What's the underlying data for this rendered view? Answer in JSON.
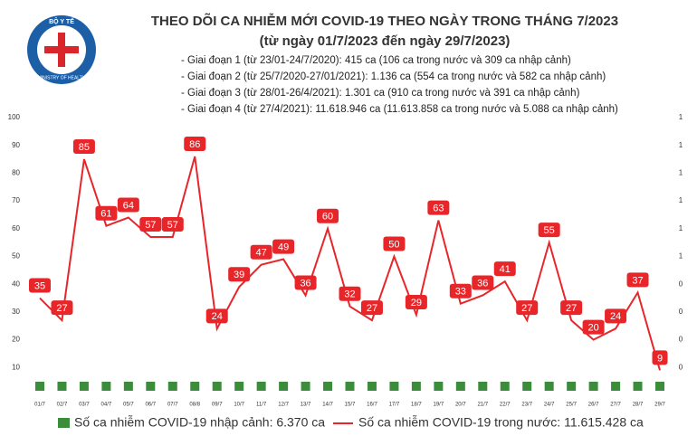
{
  "logo": {
    "top": "BỘ Y TẾ",
    "bottom": "MINISTRY OF HEALTH"
  },
  "chart_data": {
    "type": "line",
    "title": "THEO DÕI CA NHIỄM MỚI COVID-19 THEO NGÀY TRONG THÁNG 7/2023",
    "subtitle": "(từ ngày 01/7/2023 đến ngày 29/7/2023)",
    "notes": [
      "- Giai đoạn 1 (từ 23/01-24/7/2020): 415 ca (106 ca trong nước và 309 ca nhập cảnh)",
      "- Giai đoạn 2 (từ 25/7/2020-27/01/2021): 1.136 ca (554 ca trong nước và 582 ca nhập cảnh)",
      "- Giai đoạn 3 (từ 28/01-26/4/2021): 1.301 ca (910 ca trong nước và 391 ca nhập cảnh)",
      "- Giai đoạn 4 (từ 27/4/2021): 11.618.946 ca (11.613.858 ca trong nước và 5.088 ca nhập cảnh)"
    ],
    "categories": [
      "01/7",
      "02/7",
      "03/7",
      "04/7",
      "05/7",
      "06/7",
      "07/7",
      "08/8",
      "09/7",
      "10/7",
      "11/7",
      "12/7",
      "13/7",
      "14/7",
      "15/7",
      "16/7",
      "17/7",
      "18/7",
      "19/7",
      "20/7",
      "21/7",
      "22/7",
      "23/7",
      "24/7",
      "25/7",
      "26/7",
      "27/7",
      "28/7",
      "29/7"
    ],
    "series": [
      {
        "name": "Số ca nhiễm COVID-19 nhập cảnh: 6.370 ca",
        "color": "#3b8c3b",
        "axis": "y2",
        "values": [
          0,
          0,
          0,
          0,
          0,
          0,
          0,
          0,
          0,
          0,
          0,
          0,
          0,
          0,
          0,
          0,
          0,
          0,
          0,
          0,
          0,
          0,
          0,
          0,
          0,
          0,
          0,
          0,
          0
        ]
      },
      {
        "name": "Số ca nhiễm COVID-19 trong nước: 11.615.428 ca",
        "color": "#e8262a",
        "values": [
          35,
          27,
          85,
          61,
          64,
          57,
          57,
          86,
          24,
          39,
          47,
          49,
          36,
          60,
          32,
          27,
          50,
          29,
          63,
          33,
          36,
          41,
          27,
          55,
          27,
          20,
          24,
          37,
          9
        ]
      }
    ],
    "ylim": [
      0,
      100
    ],
    "yticks": [
      10,
      20,
      30,
      40,
      50,
      60,
      70,
      80,
      90,
      100
    ],
    "y2lim": [
      0,
      1
    ],
    "y2ticks": [
      {
        "value": 0.1,
        "label": "0"
      },
      {
        "value": 0.2,
        "label": "0"
      },
      {
        "value": 0.3,
        "label": "0"
      },
      {
        "value": 0.4,
        "label": "0"
      },
      {
        "value": 0.5,
        "label": "1"
      },
      {
        "value": 0.6,
        "label": "1"
      },
      {
        "value": 0.7,
        "label": "1"
      },
      {
        "value": 0.8,
        "label": "1"
      },
      {
        "value": 0.9,
        "label": "1"
      },
      {
        "value": 1.0,
        "label": "1"
      }
    ],
    "grid": false
  }
}
